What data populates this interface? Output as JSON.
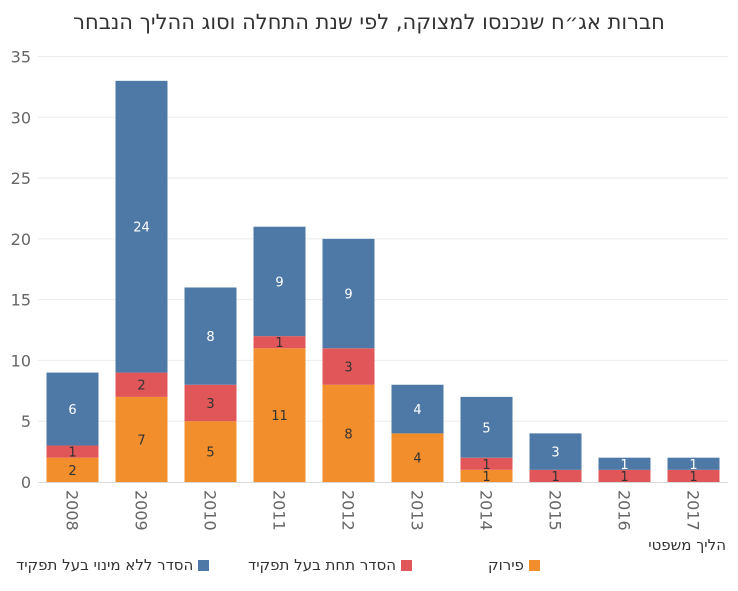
{
  "chart_data": {
    "type": "bar",
    "stacked": true,
    "title": "חברות אג״ח שנכנסו למצוקה, לפי שנת התחלה וסוג ההליך הנבחר",
    "xlabel": "",
    "ylabel": "",
    "ylim": [
      0,
      35
    ],
    "yticks": [
      0,
      5,
      10,
      15,
      20,
      25,
      30,
      35
    ],
    "categories": [
      "2008",
      "2009",
      "2010",
      "2011",
      "2012",
      "2013",
      "2014",
      "2015",
      "2016",
      "2017"
    ],
    "series": [
      {
        "name": "פירוק",
        "color": "#f28e2b",
        "label_color": "#333333",
        "values": [
          2,
          7,
          5,
          11,
          8,
          4,
          1,
          0,
          0,
          0
        ]
      },
      {
        "name": "הסדר תחת בעל תפקיד",
        "color": "#e15759",
        "label_color": "#333333",
        "values": [
          1,
          2,
          3,
          1,
          3,
          0,
          1,
          1,
          1,
          1
        ]
      },
      {
        "name": "הסדר ללא מינוי בעל תפקיד",
        "color": "#4e79a7",
        "label_color": "#ffffff",
        "values": [
          6,
          24,
          8,
          9,
          9,
          4,
          5,
          3,
          1,
          1
        ]
      }
    ],
    "grid": true,
    "legend_title": "הליך משפטי",
    "legend_position": "bottom"
  }
}
